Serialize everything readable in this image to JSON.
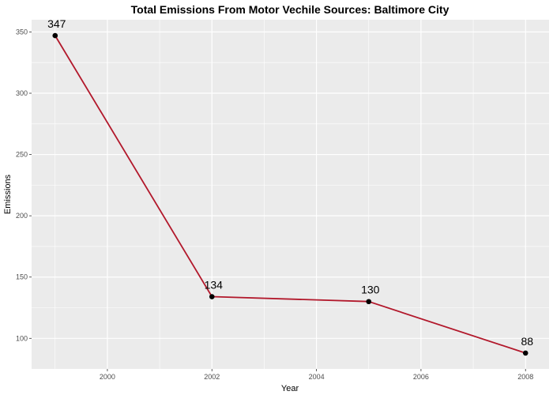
{
  "chart_data": {
    "type": "line",
    "title": "Total Emissions From Motor Vechile Sources: Baltimore City",
    "xlabel": "Year",
    "ylabel": "Emissions",
    "x": [
      1999,
      2002,
      2005,
      2008
    ],
    "series": [
      {
        "values": [
          347,
          134,
          130,
          88
        ],
        "data_labels": [
          "347",
          "134",
          "130",
          "88"
        ]
      }
    ],
    "xlim": [
      1998.55,
      2008.45
    ],
    "ylim": [
      75.05,
      359.95
    ],
    "x_ticks": [
      2000,
      2002,
      2004,
      2006,
      2008
    ],
    "x_tick_labels": [
      "2000",
      "2002",
      "2004",
      "2006",
      "2008"
    ],
    "y_ticks": [
      100,
      150,
      200,
      250,
      300,
      350
    ],
    "y_tick_labels": [
      "100",
      "150",
      "200",
      "250",
      "300",
      "350"
    ],
    "grid": true,
    "legend": "none",
    "colors": {
      "panel_background": "#ebebeb",
      "grid_major": "#ffffff",
      "line": "#b2182b",
      "point": "#000000"
    }
  }
}
